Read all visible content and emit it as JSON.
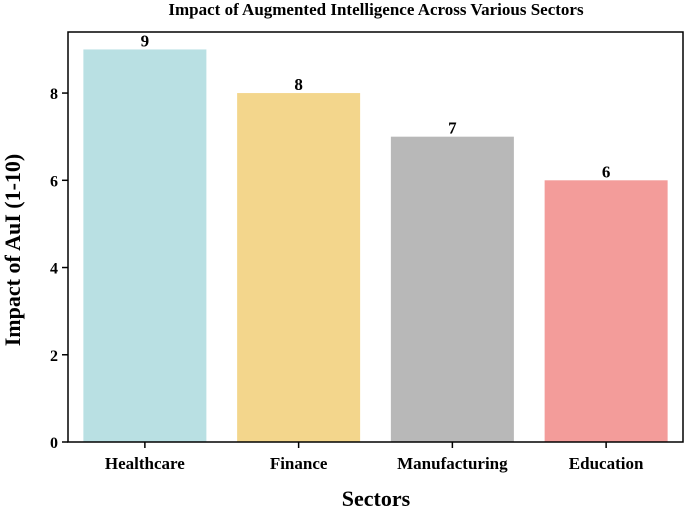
{
  "chart_data": {
    "type": "bar",
    "title": "Impact of Augmented Intelligence Across Various Sectors",
    "xlabel": "Sectors",
    "ylabel": "Impact of AuI (1-10)",
    "categories": [
      "Healthcare",
      "Finance",
      "Manufacturing",
      "Education"
    ],
    "values": [
      9,
      8,
      7,
      6
    ],
    "data_labels": [
      "9",
      "8",
      "7",
      "6"
    ],
    "colors": [
      "#b9e0e3",
      "#f3d68c",
      "#b8b8b8",
      "#f39c9a"
    ],
    "ylim": [
      0,
      9.4
    ],
    "yticks": [
      0,
      2,
      4,
      6,
      8
    ],
    "grid": false,
    "legend": "none"
  }
}
